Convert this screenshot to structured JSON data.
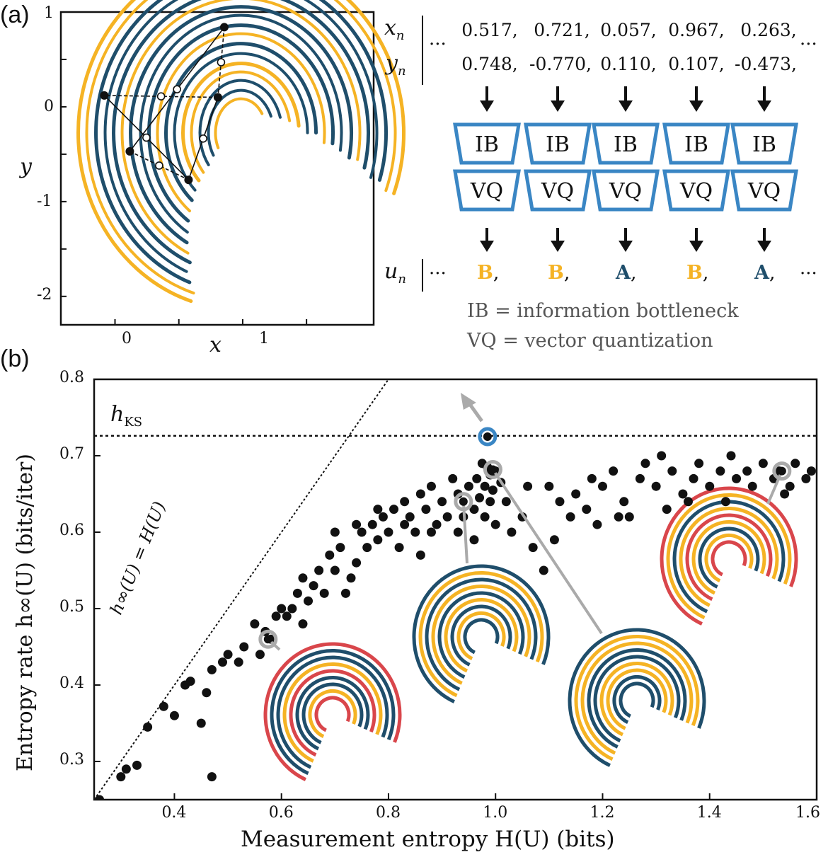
{
  "panel_a": {
    "label": "(a)",
    "attractor": {
      "x_ticks": [
        "0",
        "1"
      ],
      "y_ticks": [
        "1",
        "0",
        "-1",
        "-2"
      ],
      "xlabel": "x",
      "ylabel": "y",
      "xlim": [
        -0.55,
        1.9
      ],
      "ylim": [
        -2.3,
        1.0
      ],
      "points": [
        {
          "x": 1.0,
          "y": 0.84
        },
        {
          "x": 0.06,
          "y": 0.12
        },
        {
          "x": 0.95,
          "y": 0.1
        },
        {
          "x": 0.26,
          "y": -0.47
        },
        {
          "x": 0.72,
          "y": -0.77
        }
      ],
      "colors": {
        "blue": "#1f4e6b",
        "orange": "#f5b324"
      }
    },
    "sequence": {
      "x_label": "x",
      "x_sub": "n",
      "y_label": "y",
      "y_sub": "n",
      "u_label": "u",
      "u_sub": "n",
      "ellipsis": "···",
      "xs": [
        "0.517,",
        "0.721,",
        "0.057,",
        "0.967,",
        "0.263,"
      ],
      "ys": [
        "0.748,",
        "-0.770,",
        "0.110,",
        "0.107,",
        "-0.473,"
      ],
      "symbols": [
        {
          "letter": "B",
          "sep": ",",
          "color": "#f5b324"
        },
        {
          "letter": "B",
          "sep": ",",
          "color": "#f5b324"
        },
        {
          "letter": "A",
          "sep": ",",
          "color": "#1f4e6b"
        },
        {
          "letter": "B",
          "sep": ",",
          "color": "#f5b324"
        },
        {
          "letter": "A",
          "sep": ",",
          "color": "#1f4e6b"
        }
      ],
      "ib_label": "IB",
      "vq_label": "VQ",
      "block_color": "#3a86c4"
    },
    "legend": {
      "ib": "IB = information bottleneck",
      "vq": "VQ = vector quantization"
    }
  },
  "panel_b": {
    "label": "(b)",
    "hks_label": "h",
    "hks_sub": "KS",
    "diag_label": "h∞(U) = H(U)"
  },
  "chart_data": {
    "type": "scatter",
    "xlabel": "Measurement entropy H(U) (bits)",
    "ylabel": "Entropy rate h∞(U) (bits/iter)",
    "xlim": [
      0.25,
      1.6
    ],
    "ylim": [
      0.25,
      0.8
    ],
    "x_ticks": [
      "0.4",
      "0.6",
      "0.8",
      "1.0",
      "1.2",
      "1.4",
      "1.6"
    ],
    "y_ticks": [
      "0.3",
      "0.4",
      "0.5",
      "0.6",
      "0.7",
      "0.8"
    ],
    "hks": 0.726,
    "highlight": {
      "x": 0.985,
      "y": 0.725,
      "color": "#3a86c4"
    },
    "points": [
      [
        0.26,
        0.25
      ],
      [
        0.3,
        0.28
      ],
      [
        0.31,
        0.29
      ],
      [
        0.33,
        0.295
      ],
      [
        0.35,
        0.345
      ],
      [
        0.38,
        0.372
      ],
      [
        0.4,
        0.36
      ],
      [
        0.42,
        0.4
      ],
      [
        0.43,
        0.405
      ],
      [
        0.45,
        0.35
      ],
      [
        0.46,
        0.39
      ],
      [
        0.47,
        0.28
      ],
      [
        0.47,
        0.42
      ],
      [
        0.49,
        0.43
      ],
      [
        0.5,
        0.44
      ],
      [
        0.52,
        0.43
      ],
      [
        0.53,
        0.45
      ],
      [
        0.55,
        0.48
      ],
      [
        0.57,
        0.47
      ],
      [
        0.58,
        0.46
      ],
      [
        0.6,
        0.5
      ],
      [
        0.61,
        0.49
      ],
      [
        0.62,
        0.5
      ],
      [
        0.63,
        0.52
      ],
      [
        0.64,
        0.48
      ],
      [
        0.65,
        0.51
      ],
      [
        0.66,
        0.53
      ],
      [
        0.67,
        0.55
      ],
      [
        0.68,
        0.52
      ],
      [
        0.69,
        0.57
      ],
      [
        0.7,
        0.55
      ],
      [
        0.71,
        0.58
      ],
      [
        0.72,
        0.52
      ],
      [
        0.73,
        0.54
      ],
      [
        0.74,
        0.56
      ],
      [
        0.75,
        0.6
      ],
      [
        0.76,
        0.58
      ],
      [
        0.77,
        0.61
      ],
      [
        0.78,
        0.59
      ],
      [
        0.79,
        0.62
      ],
      [
        0.8,
        0.6
      ],
      [
        0.81,
        0.63
      ],
      [
        0.82,
        0.58
      ],
      [
        0.83,
        0.64
      ],
      [
        0.84,
        0.62
      ],
      [
        0.85,
        0.6
      ],
      [
        0.86,
        0.65
      ],
      [
        0.87,
        0.63
      ],
      [
        0.88,
        0.66
      ],
      [
        0.89,
        0.61
      ],
      [
        0.9,
        0.64
      ],
      [
        0.91,
        0.62
      ],
      [
        0.92,
        0.67
      ],
      [
        0.93,
        0.65
      ],
      [
        0.94,
        0.62
      ],
      [
        0.95,
        0.66
      ],
      [
        0.96,
        0.63
      ],
      [
        0.965,
        0.67
      ],
      [
        0.97,
        0.645
      ],
      [
        0.975,
        0.69
      ],
      [
        0.98,
        0.62
      ],
      [
        0.98,
        0.66
      ],
      [
        0.985,
        0.685
      ],
      [
        0.99,
        0.64
      ],
      [
        0.99,
        0.675
      ],
      [
        0.995,
        0.655
      ],
      [
        1.0,
        0.68
      ],
      [
        1.0,
        0.61
      ],
      [
        1.01,
        0.665
      ],
      [
        1.02,
        0.64
      ],
      [
        1.03,
        0.6
      ],
      [
        1.05,
        0.62
      ],
      [
        1.07,
        0.58
      ],
      [
        1.09,
        0.55
      ],
      [
        1.1,
        0.66
      ],
      [
        1.12,
        0.64
      ],
      [
        1.14,
        0.62
      ],
      [
        1.15,
        0.65
      ],
      [
        1.17,
        0.63
      ],
      [
        1.19,
        0.61
      ],
      [
        1.2,
        0.66
      ],
      [
        1.22,
        0.68
      ],
      [
        1.24,
        0.64
      ],
      [
        1.25,
        0.62
      ],
      [
        1.27,
        0.67
      ],
      [
        1.28,
        0.69
      ],
      [
        1.3,
        0.66
      ],
      [
        1.32,
        0.63
      ],
      [
        1.33,
        0.68
      ],
      [
        1.35,
        0.65
      ],
      [
        1.37,
        0.67
      ],
      [
        1.38,
        0.69
      ],
      [
        1.4,
        0.66
      ],
      [
        1.42,
        0.68
      ],
      [
        1.43,
        0.64
      ],
      [
        1.45,
        0.67
      ],
      [
        1.47,
        0.68
      ],
      [
        1.48,
        0.66
      ],
      [
        1.5,
        0.69
      ],
      [
        1.52,
        0.67
      ],
      [
        1.53,
        0.68
      ],
      [
        1.55,
        0.66
      ],
      [
        1.56,
        0.69
      ],
      [
        1.58,
        0.67
      ],
      [
        1.59,
        0.68
      ],
      [
        0.56,
        0.44
      ],
      [
        0.59,
        0.49
      ],
      [
        0.64,
        0.54
      ],
      [
        0.7,
        0.6
      ],
      [
        0.74,
        0.61
      ],
      [
        0.78,
        0.63
      ],
      [
        0.83,
        0.61
      ],
      [
        0.86,
        0.57
      ],
      [
        0.88,
        0.6
      ],
      [
        0.93,
        0.6
      ],
      [
        0.96,
        0.59
      ],
      [
        1.06,
        0.66
      ],
      [
        1.11,
        0.59
      ],
      [
        1.18,
        0.67
      ],
      [
        1.23,
        0.62
      ],
      [
        1.31,
        0.7
      ],
      [
        1.36,
        0.64
      ],
      [
        1.44,
        0.7
      ],
      [
        1.54,
        0.65
      ]
    ],
    "annotated": [
      {
        "x": 0.575,
        "y": 0.46
      },
      {
        "x": 0.94,
        "y": 0.64
      },
      {
        "x": 0.995,
        "y": 0.682
      },
      {
        "x": 1.535,
        "y": 0.68
      }
    ]
  }
}
